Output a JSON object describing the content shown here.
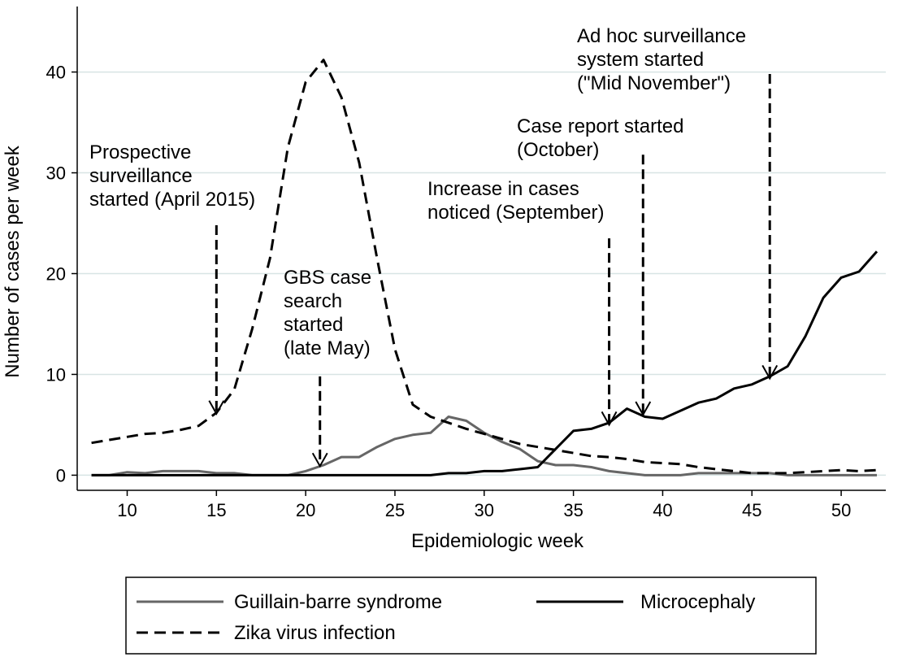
{
  "chart_data": {
    "type": "line",
    "title": "",
    "xlabel": "Epidemiologic week",
    "ylabel": "Number of cases per week",
    "xlim": [
      7.2,
      52.5
    ],
    "ylim": [
      -1.5,
      46.5
    ],
    "xticks": [
      10,
      15,
      20,
      25,
      30,
      35,
      40,
      45,
      50
    ],
    "yticks": [
      0,
      10,
      20,
      30,
      40
    ],
    "grid": "horizontal",
    "legend_position": "bottom",
    "series": [
      {
        "name": "Guillain-barre syndrome",
        "color": "#666666",
        "style": "solid",
        "x": [
          8,
          9,
          10,
          11,
          12,
          13,
          14,
          15,
          16,
          17,
          18,
          19,
          20,
          21,
          22,
          23,
          24,
          25,
          26,
          27,
          28,
          29,
          30,
          31,
          32,
          33,
          34,
          35,
          36,
          37,
          38,
          39,
          40,
          41,
          42,
          43,
          44,
          45,
          46,
          47,
          48,
          49,
          50,
          51,
          52
        ],
        "values": [
          0,
          0,
          0.3,
          0.2,
          0.4,
          0.4,
          0.4,
          0.2,
          0.2,
          0,
          0,
          0,
          0.4,
          1.0,
          1.8,
          1.8,
          2.8,
          3.6,
          4.0,
          4.2,
          5.8,
          5.4,
          4.2,
          3.3,
          2.6,
          1.4,
          1.0,
          1.0,
          0.8,
          0.4,
          0.2,
          0,
          0,
          0,
          0.2,
          0.2,
          0.2,
          0.2,
          0.2,
          0,
          0,
          0,
          0,
          0,
          0
        ]
      },
      {
        "name": "Microcephaly",
        "color": "#000000",
        "style": "solid",
        "x": [
          8,
          9,
          10,
          11,
          12,
          13,
          14,
          15,
          16,
          17,
          18,
          19,
          20,
          21,
          22,
          23,
          24,
          25,
          26,
          27,
          28,
          29,
          30,
          31,
          32,
          33,
          34,
          35,
          36,
          37,
          38,
          39,
          40,
          41,
          42,
          43,
          44,
          45,
          46,
          47,
          48,
          49,
          50,
          51,
          52
        ],
        "values": [
          0,
          0,
          0,
          0,
          0,
          0,
          0,
          0,
          0,
          0,
          0,
          0,
          0,
          0,
          0,
          0,
          0,
          0,
          0,
          0,
          0.2,
          0.2,
          0.4,
          0.4,
          0.6,
          0.8,
          2.6,
          4.4,
          4.6,
          5.2,
          6.6,
          5.8,
          5.6,
          6.4,
          7.2,
          7.6,
          8.6,
          9.0,
          9.8,
          10.8,
          13.8,
          17.6,
          19.6,
          20.2,
          22.2
        ]
      },
      {
        "name": "Zika virus infection",
        "color": "#000000",
        "style": "dashed",
        "x": [
          8,
          9,
          10,
          11,
          12,
          13,
          14,
          15,
          16,
          17,
          18,
          19,
          20,
          21,
          22,
          23,
          24,
          25,
          26,
          27,
          28,
          29,
          30,
          31,
          32,
          33,
          34,
          35,
          36,
          37,
          38,
          39,
          40,
          41,
          42,
          43,
          44,
          45,
          46,
          47,
          48,
          49,
          50,
          51,
          52
        ],
        "values": [
          3.2,
          3.5,
          3.8,
          4.1,
          4.2,
          4.5,
          4.9,
          6.2,
          8.5,
          14.5,
          21.5,
          32.5,
          39.0,
          41.2,
          37.5,
          31.0,
          21.5,
          12.5,
          7.0,
          5.8,
          5.2,
          4.6,
          4.1,
          3.6,
          3.1,
          2.8,
          2.5,
          2.2,
          1.9,
          1.8,
          1.6,
          1.3,
          1.2,
          1.1,
          0.8,
          0.6,
          0.4,
          0.2,
          0.2,
          0.2,
          0.3,
          0.4,
          0.5,
          0.4,
          0.5
        ]
      }
    ],
    "annotations": [
      {
        "lines": [
          "Prospective",
          "surveillance",
          "started (April 2015)"
        ],
        "arrow_week": 15,
        "arrow_top": 24.8,
        "arrow_tip": 6.1
      },
      {
        "lines": [
          "GBS case",
          "search",
          "started",
          "(late May)"
        ],
        "arrow_week": 20.8,
        "arrow_top": 9.8,
        "arrow_tip": 0.9
      },
      {
        "lines": [
          "Increase in cases",
          "noticed (September)"
        ],
        "arrow_week": 37,
        "arrow_top": 23.5,
        "arrow_tip": 5.0
      },
      {
        "lines": [
          "Case report started",
          "(October)"
        ],
        "arrow_week": 38.9,
        "arrow_top": 31.8,
        "arrow_tip": 6.0
      },
      {
        "lines": [
          "Ad hoc surveillance",
          "system started",
          "(\"Mid November\")"
        ],
        "arrow_week": 46,
        "arrow_top": 39.8,
        "arrow_tip": 9.6
      }
    ]
  }
}
